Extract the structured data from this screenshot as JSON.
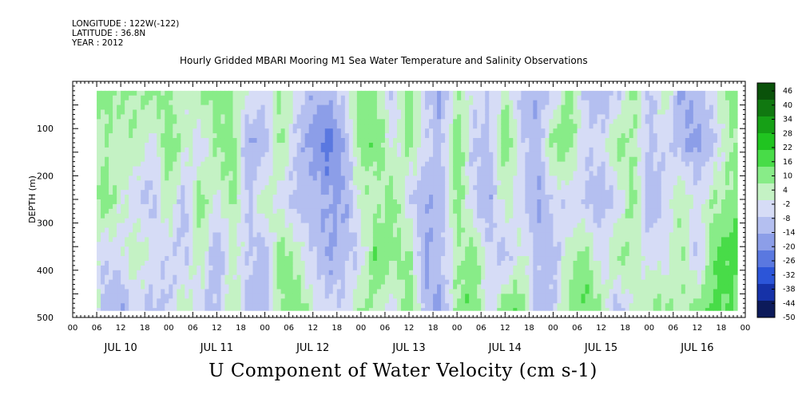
{
  "header": {
    "longitude": "LONGITUDE : 122W(-122)",
    "latitude": "LATITUDE : 36.8N",
    "year": "YEAR : 2012",
    "title": "Hourly Gridded MBARI Mooring M1 Sea Water Temperature and Salinity Observations"
  },
  "chart_data": {
    "type": "heatmap",
    "title": "U Component of Water Velocity (cm s-1)",
    "ylabel": "DEPTH (m)",
    "xlabel": "",
    "y_reversed": true,
    "ylim": [
      500,
      0
    ],
    "y_ticks": [
      100,
      200,
      300,
      400,
      500
    ],
    "x_range_hours": [
      0,
      168
    ],
    "x_day_labels": [
      "JUL 10",
      "JUL 11",
      "JUL 12",
      "JUL 13",
      "JUL 14",
      "JUL 15",
      "JUL 16"
    ],
    "x_hour_labels": [
      "00",
      "06",
      "12",
      "18"
    ],
    "data_extent": {
      "start_hour": 6,
      "end_hour": 166,
      "top_depth": 20,
      "bottom_depth": 485
    },
    "colorbar": {
      "levels": [
        "46",
        "40",
        "34",
        "28",
        "22",
        "16",
        "10",
        "4",
        "-2",
        "-8",
        "-14",
        "-20",
        "-26",
        "-32",
        "-38",
        "-44",
        "-50"
      ],
      "range": [
        -50,
        50
      ],
      "colors": [
        "#0c1a5a",
        "#1632a8",
        "#2c55d8",
        "#5a78e0",
        "#8c9ee8",
        "#b4bff0",
        "#d6dcf6",
        "#c4f2c4",
        "#88ec88",
        "#48dc48",
        "#20c420",
        "#16a016",
        "#107810",
        "#0a520a"
      ]
    },
    "bands": [
      {
        "hour": 6,
        "v": [
          8,
          0,
          8,
          -2,
          6
        ]
      },
      {
        "hour": 8,
        "v": [
          10,
          6,
          12,
          -6,
          -12
        ]
      },
      {
        "hour": 12,
        "v": [
          8,
          4,
          2,
          -4,
          -14
        ]
      },
      {
        "hour": 16,
        "v": [
          6,
          8,
          -6,
          6,
          -4
        ]
      },
      {
        "hour": 20,
        "v": [
          10,
          -4,
          -10,
          -2,
          -10
        ]
      },
      {
        "hour": 24,
        "v": [
          6,
          14,
          8,
          -6,
          -8
        ]
      },
      {
        "hour": 28,
        "v": [
          2,
          4,
          -12,
          -8,
          6
        ]
      },
      {
        "hour": 32,
        "v": [
          8,
          -6,
          12,
          6,
          -6
        ]
      },
      {
        "hour": 36,
        "v": [
          12,
          8,
          -2,
          -14,
          -10
        ]
      },
      {
        "hour": 40,
        "v": [
          6,
          12,
          10,
          2,
          8
        ]
      },
      {
        "hour": 44,
        "v": [
          0,
          -16,
          -10,
          -6,
          -12
        ]
      },
      {
        "hour": 48,
        "v": [
          -6,
          -12,
          8,
          -14,
          -10
        ]
      },
      {
        "hour": 52,
        "v": [
          8,
          10,
          -4,
          12,
          8
        ]
      },
      {
        "hour": 56,
        "v": [
          -4,
          -8,
          -10,
          4,
          14
        ]
      },
      {
        "hour": 60,
        "v": [
          -14,
          -18,
          -12,
          -8,
          2
        ]
      },
      {
        "hour": 64,
        "v": [
          -10,
          -26,
          -14,
          -16,
          -6
        ]
      },
      {
        "hour": 68,
        "v": [
          -6,
          -12,
          -16,
          -10,
          -4
        ]
      },
      {
        "hour": 72,
        "v": [
          12,
          10,
          4,
          -6,
          8
        ]
      },
      {
        "hour": 76,
        "v": [
          8,
          14,
          2,
          16,
          6
        ]
      },
      {
        "hour": 80,
        "v": [
          -8,
          -4,
          12,
          8,
          -6
        ]
      },
      {
        "hour": 84,
        "v": [
          14,
          10,
          -6,
          10,
          14
        ]
      },
      {
        "hour": 88,
        "v": [
          -6,
          -4,
          -14,
          -16,
          -10
        ]
      },
      {
        "hour": 92,
        "v": [
          -16,
          -10,
          -12,
          -8,
          -18
        ]
      },
      {
        "hour": 96,
        "v": [
          6,
          14,
          12,
          4,
          10
        ]
      },
      {
        "hour": 100,
        "v": [
          -2,
          -8,
          -6,
          12,
          14
        ]
      },
      {
        "hour": 104,
        "v": [
          -8,
          -10,
          -14,
          -4,
          -6
        ]
      },
      {
        "hour": 108,
        "v": [
          4,
          16,
          4,
          -12,
          12
        ]
      },
      {
        "hour": 112,
        "v": [
          -10,
          -6,
          -4,
          2,
          14
        ]
      },
      {
        "hour": 116,
        "v": [
          -14,
          -12,
          -16,
          -8,
          -14
        ]
      },
      {
        "hour": 120,
        "v": [
          -6,
          10,
          -4,
          -12,
          -8
        ]
      },
      {
        "hour": 124,
        "v": [
          12,
          12,
          -6,
          4,
          10
        ]
      },
      {
        "hour": 128,
        "v": [
          -8,
          -6,
          -8,
          12,
          14
        ]
      },
      {
        "hour": 132,
        "v": [
          -14,
          -4,
          -12,
          -6,
          8
        ]
      },
      {
        "hour": 136,
        "v": [
          -8,
          10,
          -8,
          10,
          -12
        ]
      },
      {
        "hour": 140,
        "v": [
          10,
          6,
          12,
          4,
          2
        ]
      },
      {
        "hour": 144,
        "v": [
          -12,
          -8,
          -14,
          -2,
          6
        ]
      },
      {
        "hour": 148,
        "v": [
          8,
          -6,
          -4,
          -4,
          10
        ]
      },
      {
        "hour": 152,
        "v": [
          -16,
          -12,
          8,
          8,
          4
        ]
      },
      {
        "hour": 156,
        "v": [
          -10,
          -18,
          -4,
          -10,
          10
        ]
      },
      {
        "hour": 160,
        "v": [
          -4,
          -8,
          6,
          14,
          16
        ]
      },
      {
        "hour": 164,
        "v": [
          10,
          6,
          8,
          18,
          14
        ]
      },
      {
        "hour": 166,
        "v": [
          8,
          10,
          12,
          16,
          12
        ]
      }
    ],
    "band_depths": [
      25,
      130,
      250,
      370,
      480
    ]
  }
}
